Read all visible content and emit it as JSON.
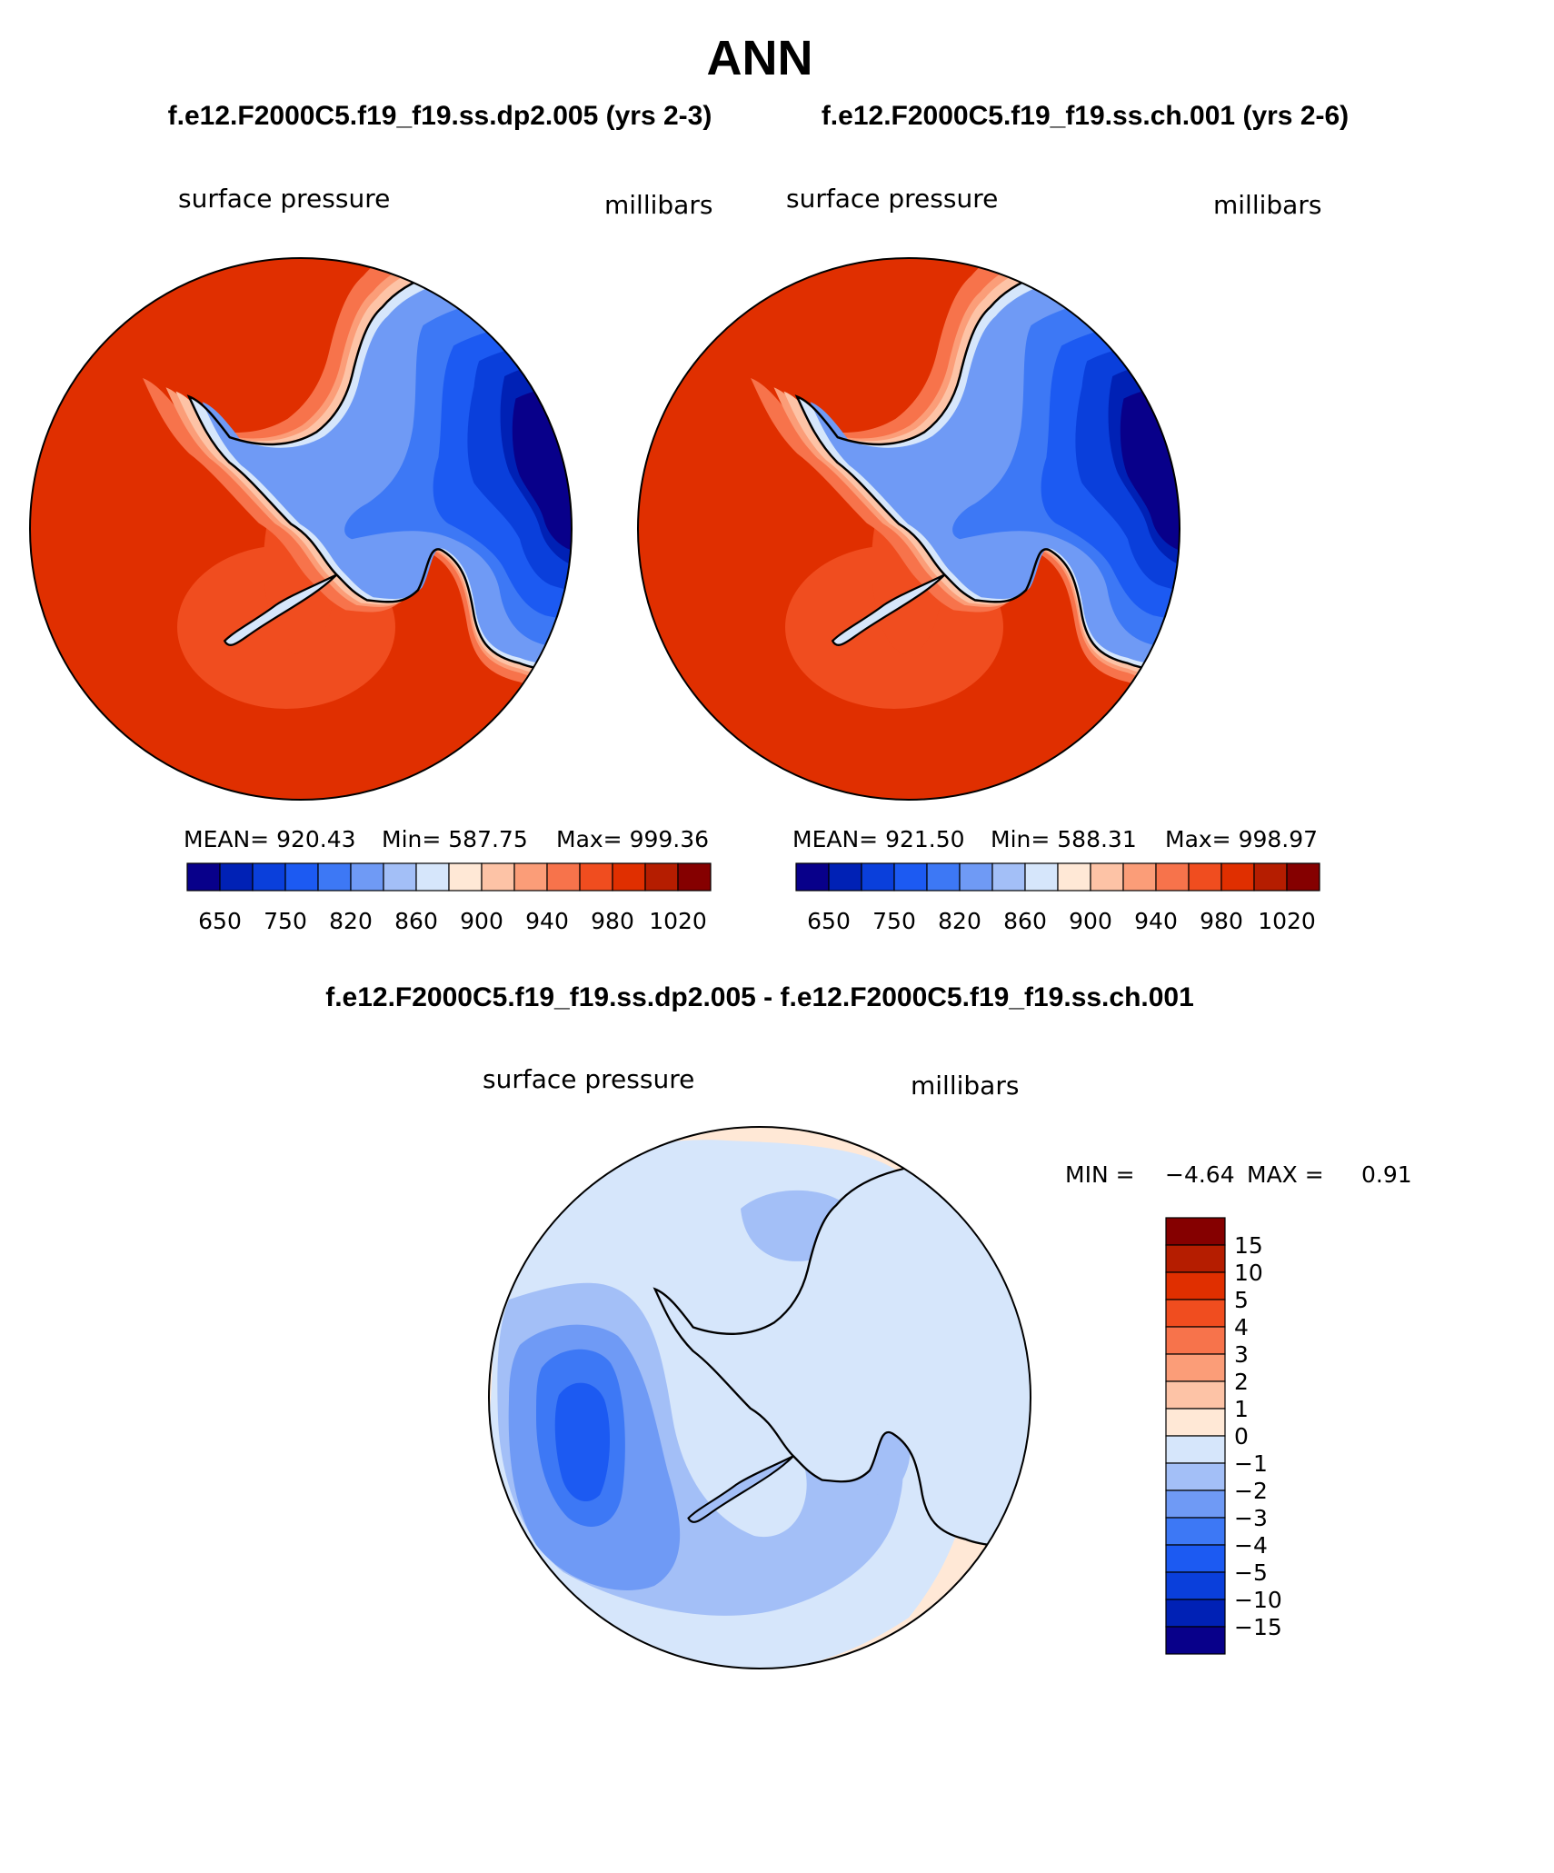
{
  "page_title": "ANN",
  "top_header": {
    "left": "f.e12.F2000C5.f19_f19.ss.dp2.005 (yrs 2-3)",
    "right": "f.e12.F2000C5.f19_f19.ss.ch.001 (yrs 2-6)"
  },
  "panels": [
    {
      "variable": "surface pressure",
      "units": "millibars",
      "stats": {
        "mean": "MEAN= 920.43",
        "min": "Min= 587.75",
        "max": "Max= 999.36"
      }
    },
    {
      "variable": "surface pressure",
      "units": "millibars",
      "stats": {
        "mean": "MEAN= 921.50",
        "min": "Min= 588.31",
        "max": "Max= 998.97"
      }
    }
  ],
  "colorbar_abs": {
    "colors": [
      "#08008a",
      "#0021b5",
      "#0a3fdb",
      "#1c5af2",
      "#3d78f5",
      "#6f9af5",
      "#a3bff7",
      "#d6e6fb",
      "#ffe8d6",
      "#fdc3a6",
      "#fb9d78",
      "#f7734b",
      "#f04d1f",
      "#e02f00",
      "#b51d00",
      "#850000"
    ],
    "labels": [
      "650",
      "750",
      "820",
      "860",
      "900",
      "940",
      "980",
      "1020"
    ]
  },
  "diff": {
    "title": "f.e12.F2000C5.f19_f19.ss.dp2.005 - f.e12.F2000C5.f19_f19.ss.ch.001",
    "variable": "surface pressure",
    "units": "millibars",
    "min_label": "MIN =",
    "min_value": "−4.64",
    "max_label": "MAX =",
    "max_value": "0.91"
  },
  "colorbar_diff": {
    "colors": [
      "#850000",
      "#b51d00",
      "#e02f00",
      "#f04d1f",
      "#f7734b",
      "#fb9d78",
      "#fdc3a6",
      "#ffe8d6",
      "#d6e6fb",
      "#a3bff7",
      "#6f9af5",
      "#3d78f5",
      "#1c5af2",
      "#0a3fdb",
      "#0021b5",
      "#08008a"
    ],
    "labels": [
      "15",
      "10",
      "5",
      "4",
      "3",
      "2",
      "1",
      "0",
      "−1",
      "−2",
      "−3",
      "−4",
      "−5",
      "−10",
      "−15"
    ]
  }
}
